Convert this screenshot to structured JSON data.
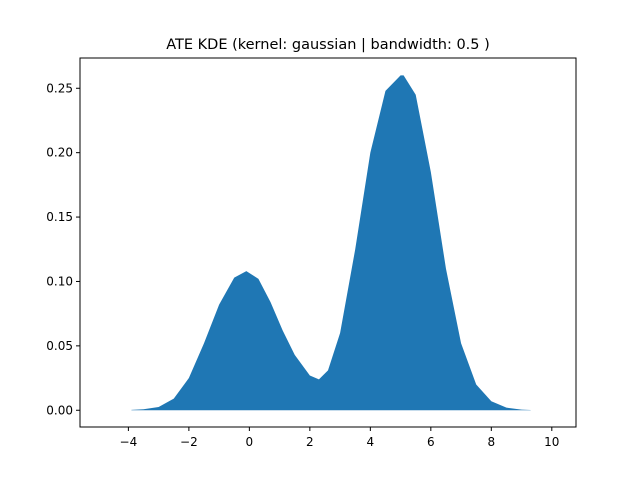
{
  "chart_data": {
    "type": "area",
    "title": "ATE KDE (kernel: gaussian | bandwidth: 0.5 )",
    "xlabel": "",
    "ylabel": "",
    "xlim": [
      -5.6,
      10.8
    ],
    "ylim": [
      -0.013,
      0.2735
    ],
    "x_ticks": [
      -4,
      -2,
      0,
      2,
      4,
      6,
      8,
      10
    ],
    "x_tick_labels": [
      "−4",
      "−2",
      "0",
      "2",
      "4",
      "6",
      "8",
      "10"
    ],
    "y_ticks": [
      0.0,
      0.05,
      0.1,
      0.15,
      0.2,
      0.25
    ],
    "y_tick_labels": [
      "0.00",
      "0.05",
      "0.10",
      "0.15",
      "0.20",
      "0.25"
    ],
    "grid": false,
    "legend": "none",
    "fill_color": "#1f77b4",
    "series": [
      {
        "x": [
          -3.9,
          -3.5,
          -3.0,
          -2.5,
          -2.0,
          -1.5,
          -1.0,
          -0.5,
          -0.1,
          0.3,
          0.7,
          1.1,
          1.5,
          2.0,
          2.3,
          2.6,
          3.0,
          3.5,
          4.0,
          4.5,
          5.0,
          5.1,
          5.5,
          6.0,
          6.5,
          7.0,
          7.5,
          8.0,
          8.5,
          9.0,
          9.3
        ],
        "y": [
          0.0003,
          0.0008,
          0.0025,
          0.009,
          0.025,
          0.052,
          0.082,
          0.103,
          0.108,
          0.102,
          0.084,
          0.062,
          0.043,
          0.027,
          0.024,
          0.031,
          0.06,
          0.125,
          0.2,
          0.248,
          0.26,
          0.26,
          0.245,
          0.185,
          0.11,
          0.052,
          0.02,
          0.007,
          0.002,
          0.0005,
          0.0002
        ]
      }
    ]
  }
}
